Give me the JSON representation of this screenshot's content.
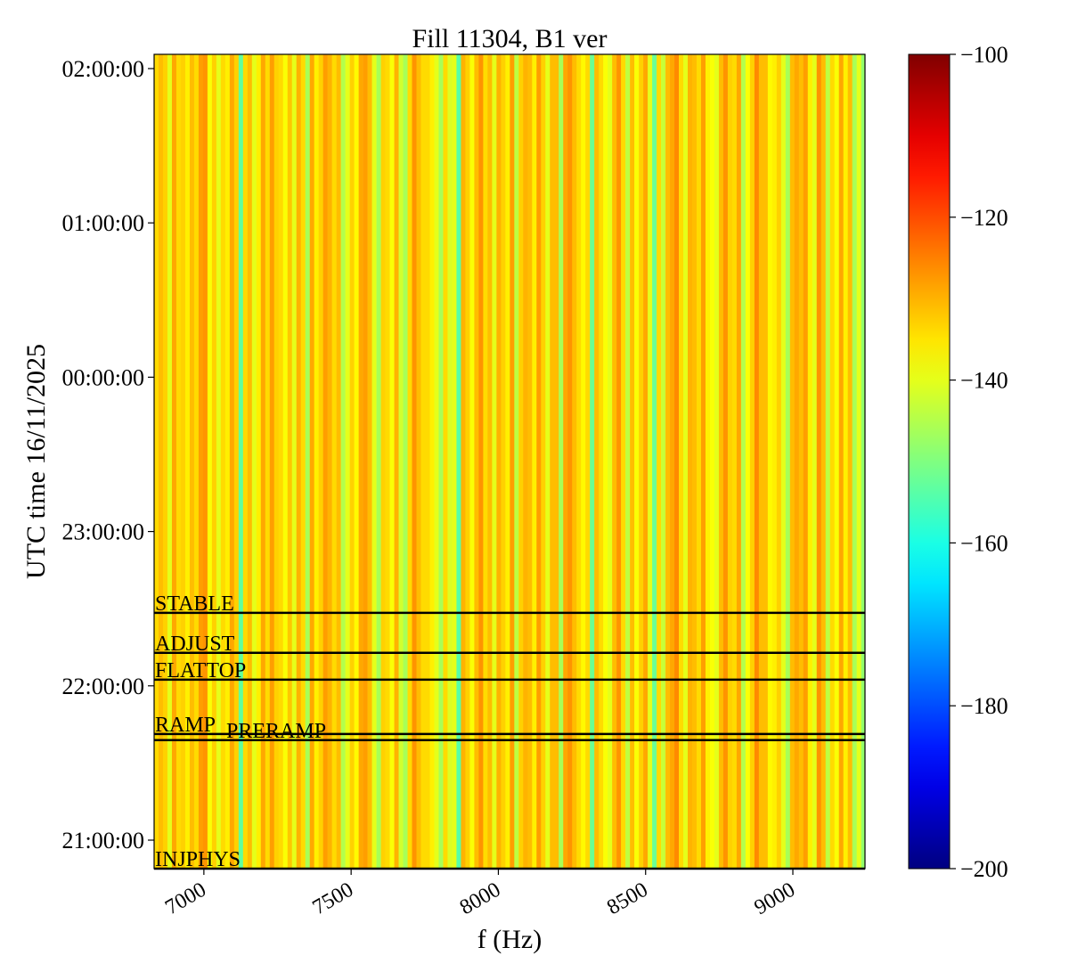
{
  "chart_data": {
    "type": "heatmap",
    "title": "Fill 11304, B1 ver",
    "xlabel": "f (Hz)",
    "ylabel": "UTC time 16/11/2025",
    "xlim": [
      6831,
      9245
    ],
    "ylim": [
      "20:48:55",
      "02:05:32"
    ],
    "xticks": [
      7000,
      7500,
      8000,
      8500,
      9000
    ],
    "yticks": [
      "21:00:00",
      "22:00:00",
      "23:00:00",
      "00:00:00",
      "01:00:00",
      "02:00:00"
    ],
    "colormap": "jet",
    "colorbar": {
      "range": [
        -200,
        -100
      ],
      "ticks": [
        "−100",
        "−120",
        "−140",
        "−160",
        "−180",
        "−200"
      ],
      "values": [
        -100,
        -120,
        -140,
        -160,
        -180,
        -200
      ]
    },
    "column_f_start_hz": 6831,
    "column_df_hz": 15.1,
    "column_values_db": [
      -134,
      -131,
      -133,
      -140,
      -129,
      -134,
      -133,
      -136,
      -131,
      -134,
      -128,
      -127,
      -138,
      -133,
      -140,
      -134,
      -136,
      -129,
      -133,
      -153,
      -134,
      -131,
      -140,
      -136,
      -129,
      -134,
      -128,
      -133,
      -134,
      -138,
      -132,
      -140,
      -130,
      -134,
      -146,
      -129,
      -136,
      -133,
      -128,
      -130,
      -134,
      -131,
      -145,
      -140,
      -133,
      -137,
      -129,
      -128,
      -131,
      -140,
      -146,
      -133,
      -134,
      -138,
      -130,
      -142,
      -146,
      -134,
      -127,
      -131,
      -134,
      -134,
      -136,
      -140,
      -146,
      -134,
      -141,
      -140,
      -154,
      -130,
      -133,
      -138,
      -131,
      -127,
      -134,
      -131,
      -140,
      -130,
      -133,
      -136,
      -128,
      -144,
      -133,
      -130,
      -131,
      -136,
      -128,
      -133,
      -140,
      -131,
      -131,
      -146,
      -129,
      -127,
      -131,
      -134,
      -137,
      -134,
      -152,
      -131,
      -134,
      -138,
      -140,
      -131,
      -127,
      -134,
      -144,
      -131,
      -138,
      -133,
      -129,
      -140,
      -152,
      -134,
      -143,
      -131,
      -129,
      -126,
      -134,
      -140,
      -130,
      -131,
      -134,
      -128,
      -136,
      -138,
      -140,
      -131,
      -127,
      -133,
      -134,
      -129,
      -145,
      -138,
      -133,
      -126,
      -131,
      -131,
      -137,
      -136,
      -133,
      -140,
      -146,
      -131,
      -129,
      -131,
      -128,
      -136,
      -140,
      -127,
      -131,
      -144,
      -134,
      -138,
      -129,
      -136,
      -131,
      -146,
      -140,
      -148
    ],
    "events": [
      {
        "label": "STABLE",
        "time": "22:28:24"
      },
      {
        "label": "ADJUST",
        "time": "22:12:49"
      },
      {
        "label": "FLATTOP",
        "time": "22:02:25"
      },
      {
        "label": "RAMP",
        "time": "21:41:17"
      },
      {
        "label": "PRERAMP",
        "time": "21:38:52"
      },
      {
        "label": "INJPHYS",
        "time": "20:48:55"
      }
    ],
    "grid": false
  }
}
